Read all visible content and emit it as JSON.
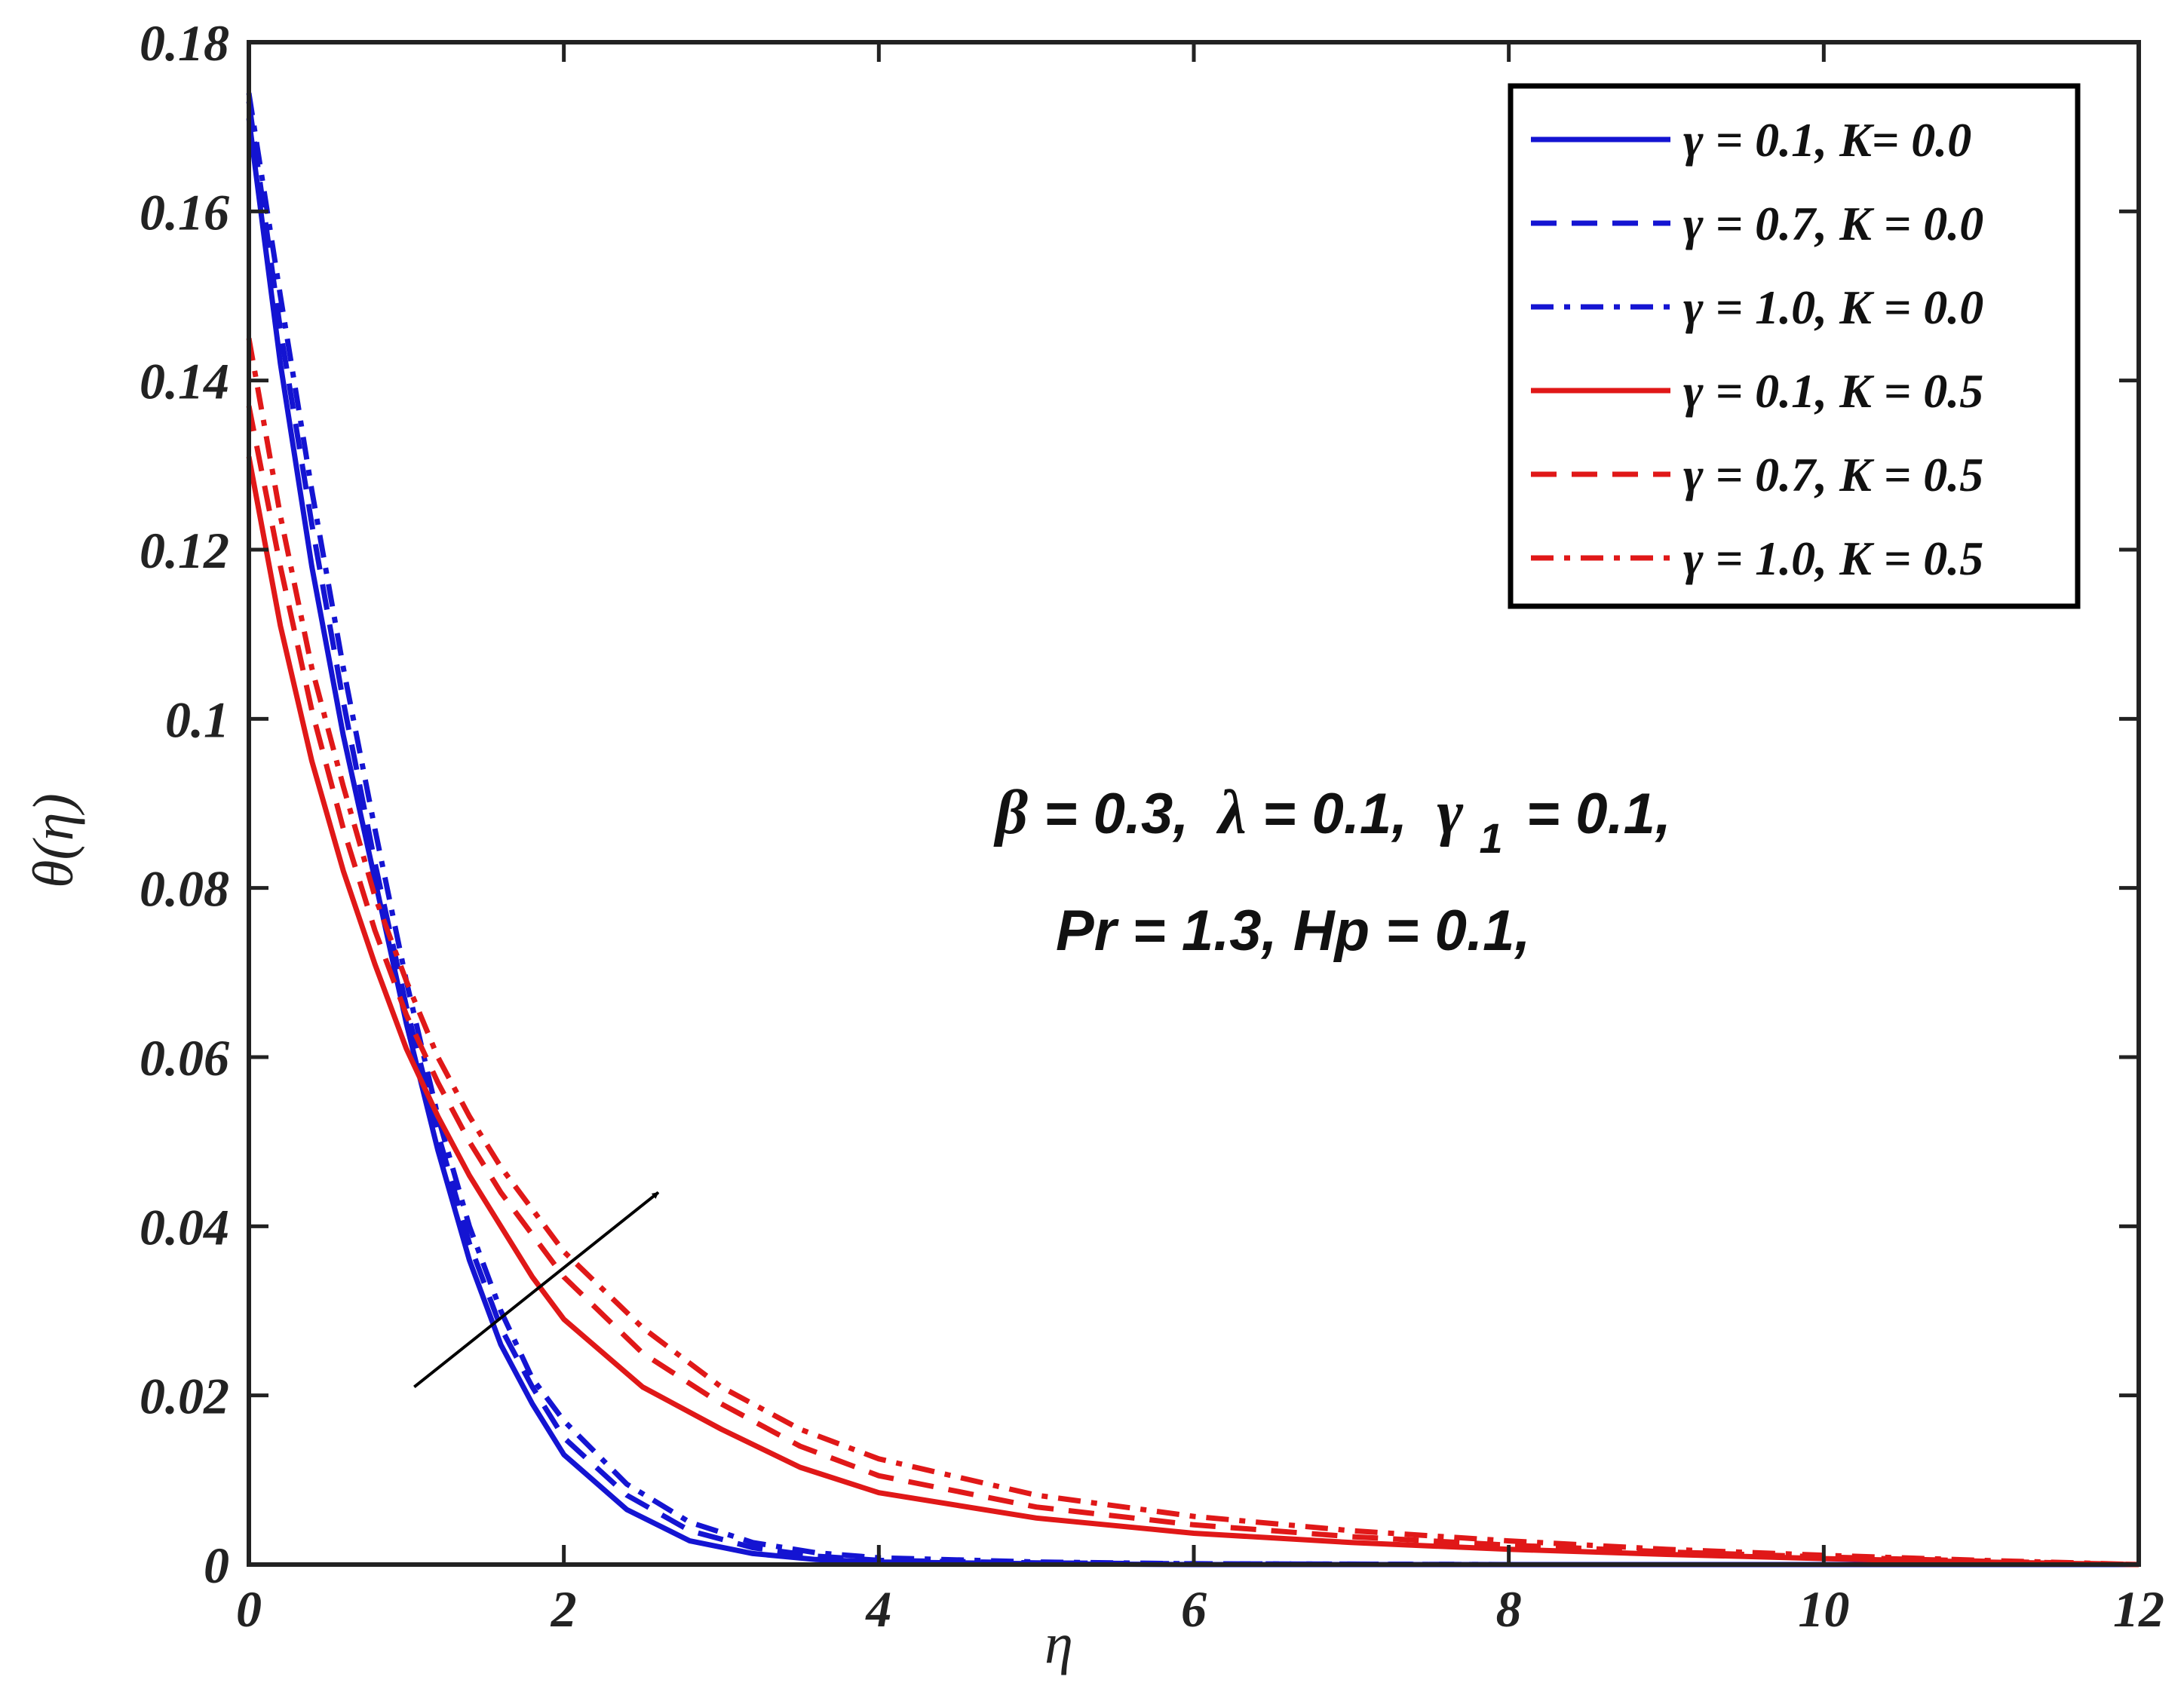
{
  "chart_data": {
    "type": "line",
    "title": "",
    "xlabel": "η",
    "ylabel": "θ(η)",
    "xlim": [
      0,
      12
    ],
    "ylim": [
      0,
      0.18
    ],
    "xticks": [
      0,
      2,
      4,
      6,
      8,
      10,
      12
    ],
    "xtick_labels": [
      "0",
      "2",
      "4",
      "6",
      "8",
      "10",
      "12"
    ],
    "yticks": [
      0,
      0.02,
      0.04,
      0.06,
      0.08,
      0.1,
      0.12,
      0.14,
      0.16,
      0.18
    ],
    "ytick_labels": [
      "0",
      "0.02",
      "0.04",
      "0.06",
      "0.08",
      "0.1",
      "0.12",
      "0.14",
      "0.16",
      "0.18"
    ],
    "grid": false,
    "legend_position": "top-right",
    "series": [
      {
        "name": "γ = 0.1, K= 0.0",
        "color": "#1414d2",
        "dash": "solid",
        "x": [
          0,
          0.2,
          0.4,
          0.6,
          0.8,
          1,
          1.2,
          1.4,
          1.6,
          1.8,
          2,
          2.4,
          2.8,
          3.2,
          3.6,
          4,
          5,
          6,
          8,
          10,
          12
        ],
        "y": [
          0.171,
          0.142,
          0.118,
          0.098,
          0.081,
          0.064,
          0.049,
          0.036,
          0.026,
          0.019,
          0.013,
          0.0065,
          0.0028,
          0.0013,
          0.0006,
          0.0003,
          0.0001,
          0,
          0,
          0,
          0
        ]
      },
      {
        "name": "γ = 0.7, K = 0.0",
        "color": "#1414d2",
        "dash": "dashed",
        "x": [
          0,
          0.2,
          0.4,
          0.6,
          0.8,
          1,
          1.2,
          1.4,
          1.6,
          1.8,
          2,
          2.4,
          2.8,
          3.2,
          3.6,
          4,
          5,
          6,
          8,
          10,
          12
        ],
        "y": [
          0.173,
          0.146,
          0.123,
          0.102,
          0.083,
          0.066,
          0.051,
          0.038,
          0.028,
          0.021,
          0.015,
          0.0082,
          0.004,
          0.002,
          0.001,
          0.0005,
          0.0002,
          0.0001,
          0,
          0,
          0
        ]
      },
      {
        "name": "γ = 1.0, K = 0.0",
        "color": "#1414d2",
        "dash": "dashdot",
        "x": [
          0,
          0.2,
          0.4,
          0.6,
          0.8,
          1,
          1.2,
          1.4,
          1.6,
          1.8,
          2,
          2.4,
          2.8,
          3.2,
          3.6,
          4,
          5,
          6,
          8,
          10,
          12
        ],
        "y": [
          0.174,
          0.15,
          0.127,
          0.106,
          0.087,
          0.069,
          0.053,
          0.04,
          0.03,
          0.022,
          0.017,
          0.0095,
          0.005,
          0.0026,
          0.0014,
          0.0008,
          0.0003,
          0.0001,
          0,
          0,
          0
        ]
      },
      {
        "name": "γ = 0.1, K = 0.5",
        "color": "#e01818",
        "dash": "solid",
        "x": [
          0,
          0.2,
          0.4,
          0.6,
          0.8,
          1,
          1.2,
          1.4,
          1.6,
          1.8,
          2,
          2.5,
          3,
          3.5,
          4,
          5,
          6,
          7,
          8,
          9,
          10,
          11,
          12
        ],
        "y": [
          0.131,
          0.111,
          0.095,
          0.082,
          0.071,
          0.061,
          0.053,
          0.046,
          0.04,
          0.034,
          0.029,
          0.021,
          0.016,
          0.0115,
          0.0085,
          0.0055,
          0.0037,
          0.0026,
          0.0018,
          0.0012,
          0.0007,
          0.0003,
          0
        ]
      },
      {
        "name": "γ = 0.7, K = 0.5",
        "color": "#e01818",
        "dash": "dashed",
        "x": [
          0,
          0.2,
          0.4,
          0.6,
          0.8,
          1,
          1.2,
          1.4,
          1.6,
          1.8,
          2,
          2.5,
          3,
          3.5,
          4,
          5,
          6,
          7,
          8,
          9,
          10,
          11,
          12
        ],
        "y": [
          0.137,
          0.118,
          0.101,
          0.087,
          0.075,
          0.065,
          0.057,
          0.05,
          0.044,
          0.039,
          0.034,
          0.025,
          0.019,
          0.014,
          0.0105,
          0.0068,
          0.0047,
          0.0033,
          0.0023,
          0.0015,
          0.0009,
          0.0004,
          0
        ]
      },
      {
        "name": "γ = 1.0, K = 0.5",
        "color": "#e01818",
        "dash": "dashdot",
        "x": [
          0,
          0.2,
          0.4,
          0.6,
          0.8,
          1,
          1.2,
          1.4,
          1.6,
          1.8,
          2,
          2.5,
          3,
          3.5,
          4,
          5,
          6,
          7,
          8,
          9,
          10,
          11,
          12
        ],
        "y": [
          0.145,
          0.124,
          0.106,
          0.092,
          0.079,
          0.069,
          0.06,
          0.053,
          0.047,
          0.042,
          0.037,
          0.028,
          0.021,
          0.016,
          0.0125,
          0.0082,
          0.0057,
          0.004,
          0.0028,
          0.0018,
          0.0011,
          0.0005,
          0
        ]
      }
    ],
    "annotations": {
      "params_line1": "β = 0.3, λ = 0.1, γ1 = 0.1,",
      "params_line1_parts": {
        "beta_sym": "β",
        "beta_rest": "= 0.3,",
        "lambda_sym": "λ",
        "lambda_rest": "= 0.1,",
        "gamma_sym": "γ",
        "gamma_sub": "1",
        "gamma_rest": "= 0.1,"
      },
      "params_line2": "Pr = 1.3, Hp = 0.1,",
      "arrow": {
        "from": [
          1.05,
          0.021
        ],
        "to": [
          2.6,
          0.044
        ],
        "meaning": "increasing γ"
      }
    }
  }
}
